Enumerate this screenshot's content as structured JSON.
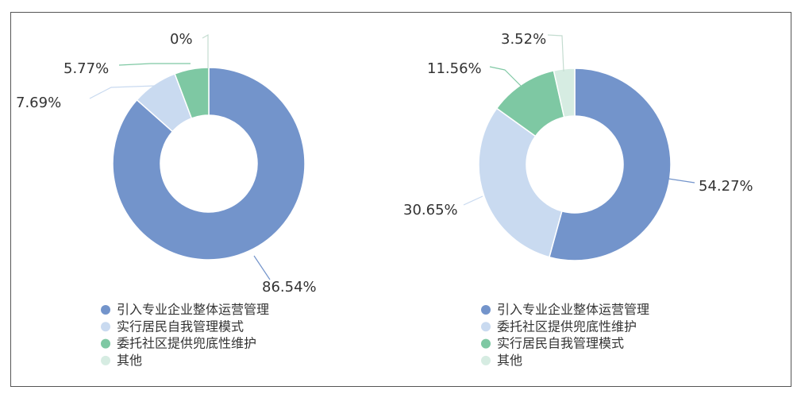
{
  "colors": {
    "enterprise": "#7394cb",
    "residents": "#c9daf0",
    "community": "#7ec8a3",
    "other": "#d6ece2"
  },
  "chart_data": [
    {
      "type": "pie",
      "variant": "donut",
      "title": "",
      "legend": [
        "引入专业企业整体运营管理",
        "实行居民自我管理模式",
        "委托社区提供兜底性维护",
        "其他"
      ],
      "slices": [
        {
          "label": "引入专业企业整体运营管理",
          "value": 86.54,
          "display": "86.54%",
          "color_key": "enterprise"
        },
        {
          "label": "实行居民自我管理模式",
          "value": 7.69,
          "display": "7.69%",
          "color_key": "residents"
        },
        {
          "label": "委托社区提供兜底性维护",
          "value": 5.77,
          "display": "5.77%",
          "color_key": "community"
        },
        {
          "label": "其他",
          "value": 0,
          "display": "0%",
          "color_key": "other"
        }
      ],
      "legend_placement": "bottom-left"
    },
    {
      "type": "pie",
      "variant": "donut",
      "title": "",
      "legend": [
        "引入专业企业整体运营管理",
        "委托社区提供兜底性维护",
        "实行居民自我管理模式",
        "其他"
      ],
      "slices": [
        {
          "label": "引入专业企业整体运营管理",
          "value": 54.27,
          "display": "54.27%",
          "color_key": "enterprise"
        },
        {
          "label": "委托社区提供兜底性维护",
          "value": 30.65,
          "display": "30.65%",
          "color_key": "residents"
        },
        {
          "label": "实行居民自我管理模式",
          "value": 11.56,
          "display": "11.56%",
          "color_key": "community"
        },
        {
          "label": "其他",
          "value": 3.52,
          "display": "3.52%",
          "color_key": "other"
        }
      ],
      "legend_placement": "bottom-left"
    }
  ]
}
